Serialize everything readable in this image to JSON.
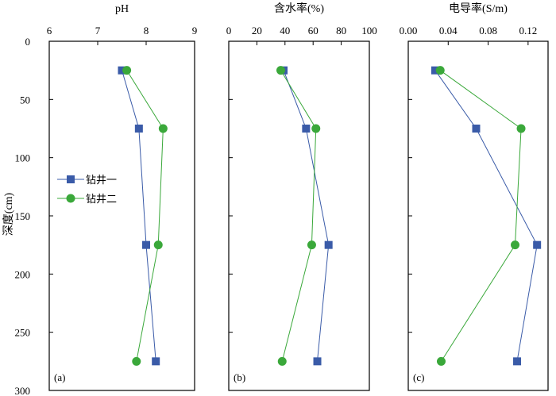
{
  "colors": {
    "series1": "#3a5ba8",
    "series2": "#3aa83a",
    "axis": "#000000"
  },
  "chart_data": {
    "type": "line",
    "shared_y": {
      "label": "深度(cm)",
      "ticks": [
        "0",
        "50",
        "100",
        "150",
        "200",
        "250",
        "300"
      ],
      "tick_values": [
        0,
        50,
        100,
        150,
        200,
        250,
        300
      ],
      "lim": [
        0,
        300
      ],
      "inverted": true
    },
    "legend": {
      "placement": "left-middle of panel (a)",
      "entries": [
        "钻井一",
        "钻井二"
      ]
    },
    "panels": [
      {
        "id": "a",
        "title": "pH",
        "panel_label": "(a)",
        "xlim": [
          6,
          9
        ],
        "xticks": [
          "6",
          "7",
          "8",
          "9"
        ],
        "xtick_values": [
          6,
          7,
          8,
          9
        ],
        "series": [
          {
            "name": "钻井一",
            "marker": "square",
            "points": [
              [
                7.5,
                25
              ],
              [
                7.85,
                75
              ],
              [
                8.0,
                175
              ],
              [
                8.2,
                275
              ]
            ]
          },
          {
            "name": "钻井二",
            "marker": "circle",
            "points": [
              [
                7.6,
                25
              ],
              [
                8.35,
                75
              ],
              [
                8.25,
                175
              ],
              [
                7.8,
                275
              ]
            ]
          }
        ]
      },
      {
        "id": "b",
        "title": "含水率(%)",
        "panel_label": "(b)",
        "xlim": [
          0,
          100
        ],
        "xticks": [
          "0",
          "20",
          "40",
          "60",
          "80",
          "100"
        ],
        "xtick_values": [
          0,
          20,
          40,
          60,
          80,
          100
        ],
        "series": [
          {
            "name": "钻井一",
            "marker": "square",
            "points": [
              [
                39,
                25
              ],
              [
                55,
                75
              ],
              [
                71,
                175
              ],
              [
                63,
                275
              ]
            ]
          },
          {
            "name": "钻井二",
            "marker": "circle",
            "points": [
              [
                37,
                25
              ],
              [
                62,
                75
              ],
              [
                59,
                175
              ],
              [
                38,
                275
              ]
            ]
          }
        ]
      },
      {
        "id": "c",
        "title": "电导率(S/m)",
        "panel_label": "(c)",
        "xlim": [
          0,
          0.14
        ],
        "xticks": [
          "0.00",
          "0.04",
          "0.08",
          "0.12"
        ],
        "xtick_values": [
          0.0,
          0.04,
          0.08,
          0.12
        ],
        "series": [
          {
            "name": "钻井一",
            "marker": "square",
            "points": [
              [
                0.027,
                25
              ],
              [
                0.068,
                75
              ],
              [
                0.129,
                175
              ],
              [
                0.109,
                275
              ]
            ]
          },
          {
            "name": "钻井二",
            "marker": "circle",
            "points": [
              [
                0.032,
                25
              ],
              [
                0.113,
                75
              ],
              [
                0.107,
                175
              ],
              [
                0.033,
                275
              ]
            ]
          }
        ]
      }
    ]
  }
}
